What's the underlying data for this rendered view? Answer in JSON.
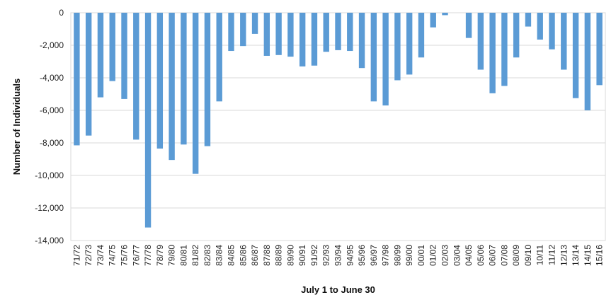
{
  "chart_data": {
    "type": "bar",
    "title": "",
    "xlabel": "July 1 to June 30",
    "ylabel": "Number of Individuals",
    "ylim": [
      -14000,
      0
    ],
    "yticks": [
      0,
      -2000,
      -4000,
      -6000,
      -8000,
      -10000,
      -12000,
      -14000
    ],
    "ytick_labels": [
      "0",
      "-2,000",
      "-4,000",
      "-6,000",
      "-8,000",
      "-10,000",
      "-12,000",
      "-14,000"
    ],
    "grid": "horizontal",
    "legend": "none",
    "bar_color": "#5b9bd5",
    "categories": [
      "71/72",
      "72/73",
      "73/74",
      "74/75",
      "75/76",
      "76/77",
      "77/78",
      "78/79",
      "79/80",
      "80/81",
      "81/82",
      "82/83",
      "83/84",
      "84/85",
      "85/86",
      "86/87",
      "87/88",
      "88/89",
      "89/90",
      "90/91",
      "91/92",
      "92/93",
      "93/94",
      "94/95",
      "95/96",
      "96/97",
      "97/98",
      "98/99",
      "99/00",
      "00/01",
      "01/02",
      "02/03",
      "03/04",
      "04/05",
      "05/06",
      "06/07",
      "07/08",
      "08/09",
      "09/10",
      "10/11",
      "11/12",
      "12/13",
      "13/14",
      "14/15",
      "15/16"
    ],
    "values": [
      -8150,
      -7550,
      -5200,
      -4200,
      -5300,
      -7800,
      -13200,
      -8350,
      -9050,
      -8100,
      -9900,
      -8200,
      -5450,
      -2350,
      -2050,
      -1300,
      -2650,
      -2600,
      -2700,
      -3300,
      -3250,
      -2400,
      -2300,
      -2350,
      -3400,
      -5450,
      -5700,
      -4150,
      -3800,
      -2750,
      -900,
      -150,
      0,
      -1550,
      -3500,
      -4950,
      -4500,
      -2750,
      -850,
      -1650,
      -2250,
      -3500,
      -5250,
      -6000,
      -4450
    ]
  }
}
